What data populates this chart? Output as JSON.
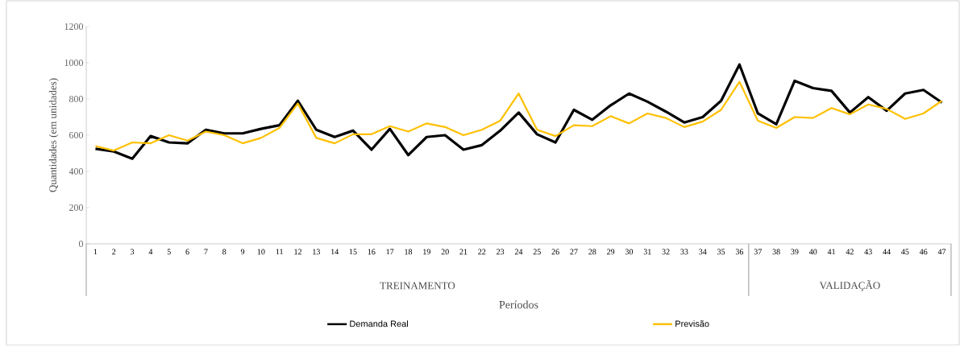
{
  "chart_data": {
    "type": "line",
    "xlabel": "Períodos",
    "ylabel": "Quantidades (em unidades)",
    "categories": [
      "1",
      "2",
      "3",
      "4",
      "5",
      "6",
      "7",
      "8",
      "9",
      "10",
      "11",
      "12",
      "13",
      "14",
      "15",
      "16",
      "17",
      "18",
      "19",
      "20",
      "21",
      "22",
      "23",
      "24",
      "25",
      "26",
      "27",
      "28",
      "29",
      "30",
      "31",
      "32",
      "33",
      "34",
      "35",
      "36",
      "37",
      "38",
      "39",
      "40",
      "41",
      "42",
      "43",
      "44",
      "45",
      "46",
      "47"
    ],
    "series": [
      {
        "name": "Demanda Real",
        "color": "#000000",
        "values": [
          525,
          510,
          470,
          595,
          560,
          555,
          630,
          610,
          610,
          635,
          655,
          790,
          630,
          590,
          625,
          520,
          635,
          490,
          590,
          600,
          520,
          545,
          625,
          725,
          605,
          560,
          740,
          685,
          765,
          830,
          785,
          730,
          670,
          700,
          790,
          990,
          720,
          660,
          900,
          860,
          845,
          725,
          810,
          735,
          830,
          850,
          780
        ]
      },
      {
        "name": "Previsão",
        "color": "#ffc000",
        "values": [
          540,
          515,
          560,
          555,
          600,
          570,
          620,
          600,
          555,
          585,
          640,
          775,
          585,
          555,
          605,
          605,
          650,
          620,
          665,
          645,
          600,
          630,
          680,
          830,
          630,
          595,
          655,
          650,
          705,
          665,
          720,
          695,
          645,
          675,
          740,
          895,
          680,
          640,
          700,
          695,
          750,
          715,
          770,
          745,
          690,
          720,
          790
        ]
      }
    ],
    "annotations": [
      "TREINAMENTO",
      "VALIDAÇÃO"
    ],
    "ylim": [
      0,
      1200
    ],
    "yticks": [
      0,
      200,
      400,
      600,
      800,
      1000,
      1200
    ],
    "grid": false,
    "legend": "bottom",
    "marker": "none",
    "line_style": "solid"
  }
}
